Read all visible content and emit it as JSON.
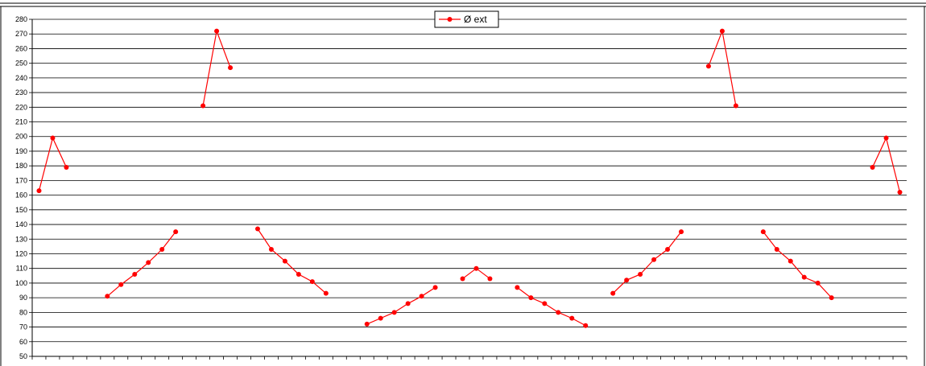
{
  "chart_data": {
    "type": "line",
    "title": "",
    "xlabel": "",
    "ylabel": "",
    "ylim": [
      50,
      280
    ],
    "ytick_step": 10,
    "grid": true,
    "legend_position": "top-center",
    "series": [
      {
        "name": "Ø ext",
        "color": "#ff0000",
        "values": [
          163,
          199,
          179,
          null,
          null,
          91,
          99,
          106,
          114,
          123,
          135,
          null,
          221,
          272,
          247,
          null,
          137,
          123,
          115,
          106,
          101,
          93,
          null,
          null,
          72,
          76,
          80,
          86,
          91,
          97,
          null,
          103,
          110,
          103,
          null,
          97,
          90,
          86,
          80,
          76,
          71,
          null,
          93,
          102,
          106,
          116,
          123,
          135,
          null,
          248,
          272,
          221,
          null,
          135,
          123,
          115,
          104,
          100,
          90,
          null,
          null,
          179,
          199,
          162
        ]
      }
    ]
  }
}
